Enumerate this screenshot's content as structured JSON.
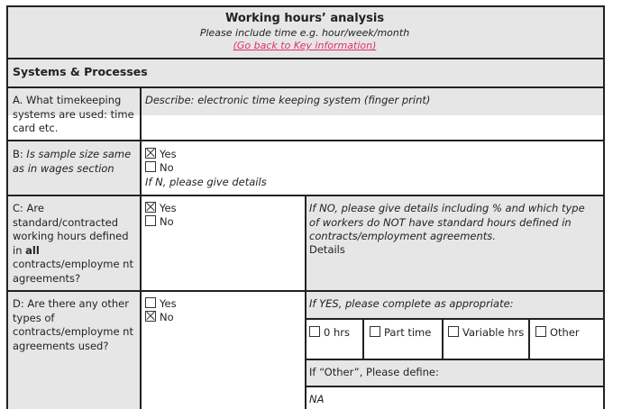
{
  "header": {
    "title": "Working hours’ analysis",
    "subtitle": "Please include time e.g. hour/week/month",
    "link": "(Go back to Key information)",
    "link_color": "#e0306e"
  },
  "section": {
    "title": "Systems & Processes"
  },
  "rows": {
    "a": {
      "question": "A. What timekeeping systems are used: time card etc.",
      "answer": "Describe: electronic time keeping system (finger print)"
    },
    "b": {
      "q_prefix": "B: ",
      "q_italic": "Is sample size same as in wages section",
      "yes": "Yes",
      "no": "No",
      "yes_checked": true,
      "no_checked": false,
      "note": "If N, please give details"
    },
    "c": {
      "q_before": "C: Are standard/contracted working hours defined in ",
      "q_bold": "all",
      "q_after": " contracts/employme nt agreements?",
      "yes": "Yes",
      "no": "No",
      "yes_checked": true,
      "no_checked": false,
      "instruction": "If NO, please give details including % and which type of workers do NOT have standard hours defined in contracts/employment agreements.",
      "details_label": "Details"
    },
    "d": {
      "question": "D: Are there any other types of contracts/employme nt agreements used?",
      "yes": "Yes",
      "no": "No",
      "yes_checked": false,
      "no_checked": true,
      "instruction": "If YES, please complete as appropriate:",
      "options": [
        {
          "label": "0 hrs",
          "checked": false
        },
        {
          "label": "Part time",
          "checked": false
        },
        {
          "label": "Variable hrs",
          "checked": false
        },
        {
          "label": "Other",
          "checked": false
        }
      ],
      "other_label": "If “Other”, Please define:",
      "other_value": "NA"
    }
  }
}
